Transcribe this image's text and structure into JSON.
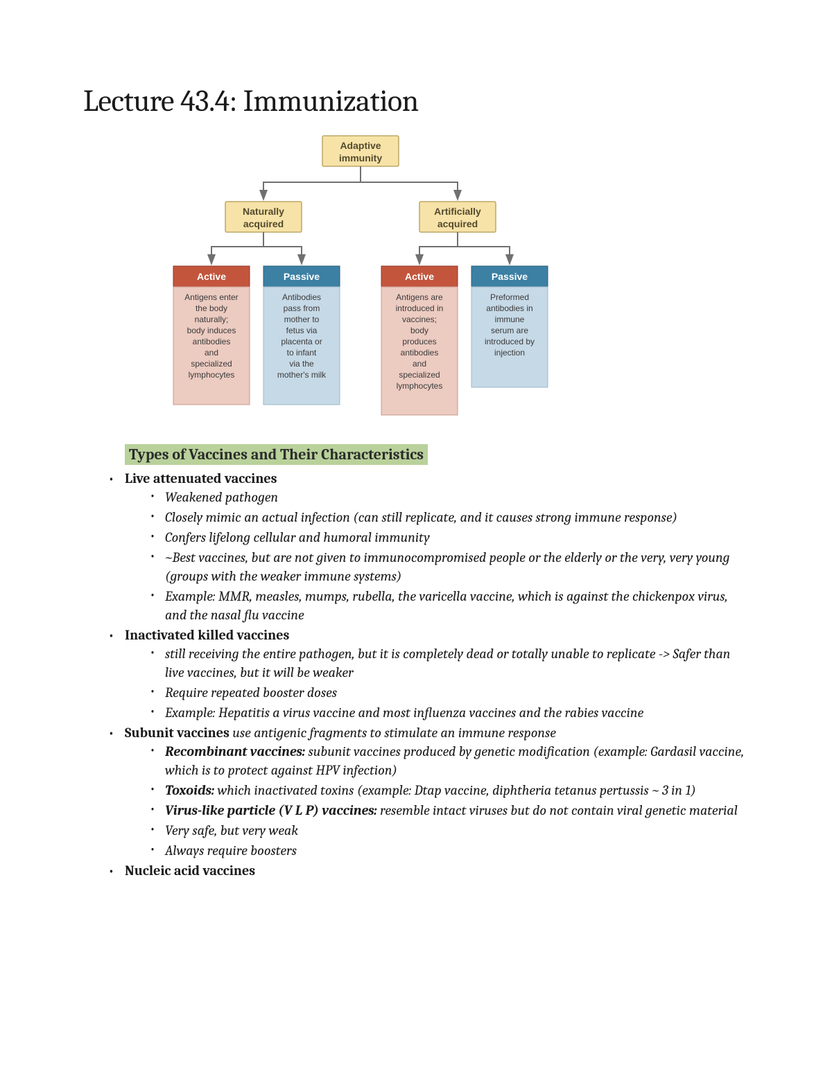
{
  "title": "Lecture 43.4: Immunization",
  "diagram": {
    "type": "tree",
    "colors": {
      "yellow_fill": "#f7e3a8",
      "yellow_stroke": "#bba766",
      "red_header_fill": "#c3553d",
      "blue_header_fill": "#3c80a4",
      "red_desc_fill": "#eccbc1",
      "blue_desc_fill": "#c6d9e6",
      "arrow": "#707070",
      "header_text": "#ffffff",
      "yellow_text": "#534a2e",
      "desc_text": "#3a3a3a",
      "background": "#ffffff"
    },
    "root": {
      "lines": [
        "Adaptive",
        "immunity"
      ]
    },
    "level2": [
      {
        "lines": [
          "Naturally",
          "acquired"
        ]
      },
      {
        "lines": [
          "Artificially",
          "acquired"
        ]
      }
    ],
    "leaves": [
      {
        "header": "Active",
        "type": "red",
        "desc": [
          "Antigens enter",
          "the body",
          "naturally;",
          "body induces",
          "antibodies",
          "and",
          "specialized",
          "lymphocytes"
        ]
      },
      {
        "header": "Passive",
        "type": "blue",
        "desc": [
          "Antibodies",
          "pass from",
          "mother to",
          "fetus via",
          "placenta or",
          "to infant",
          "via the",
          "mother's milk"
        ]
      },
      {
        "header": "Active",
        "type": "red",
        "desc": [
          "Antigens are",
          "introduced in",
          "vaccines;",
          "body",
          "produces",
          "antibodies",
          "and",
          "specialized",
          "lymphocytes"
        ]
      },
      {
        "header": "Passive",
        "type": "blue",
        "desc": [
          "Preformed",
          "antibodies in",
          "immune",
          "serum are",
          "introduced by",
          "injection"
        ]
      }
    ]
  },
  "section_heading": "Types of Vaccines and Their Characteristics",
  "content": {
    "items": [
      {
        "heading_bold": "Live attenuated vaccines",
        "heading_rest": "",
        "sub": [
          {
            "bold": "",
            "text": "Weakened pathogen"
          },
          {
            "bold": "",
            "text": "Closely mimic an actual infection (can still replicate, and it causes strong immune response)"
          },
          {
            "bold": "",
            "text": "Confers lifelong cellular and humoral immunity"
          },
          {
            "bold": "",
            "text": "~Best vaccines, but are not given to immunocompromised people or the elderly or the very, very young (groups with the weaker immune systems)"
          },
          {
            "bold": "",
            "text": "Example: MMR, measles, mumps, rubella, the varicella vaccine, which is against the chickenpox virus, and the nasal flu vaccine"
          }
        ]
      },
      {
        "heading_bold": "Inactivated killed vaccines",
        "heading_rest": "",
        "sub": [
          {
            "bold": "",
            "text": "still receiving the entire pathogen, but it is completely dead or totally unable to replicate -> Safer than live vaccines, but it will be weaker"
          },
          {
            "bold": "",
            "text": "Require repeated booster doses"
          },
          {
            "bold": "",
            "text": "Example: Hepatitis a virus vaccine and most influenza vaccines and the rabies vaccine"
          }
        ]
      },
      {
        "heading_bold": "Subunit vaccines",
        "heading_rest": " use antigenic fragments to stimulate an immune response",
        "sub": [
          {
            "bold": "Recombinant vaccines:",
            "text": " subunit vaccines produced by genetic modification (example: Gardasil vaccine, which is to protect against HPV infection)"
          },
          {
            "bold": "Toxoids:",
            "text": " which inactivated toxins (example: Dtap vaccine, diphtheria tetanus pertussis ~ 3 in 1)"
          },
          {
            "bold": "Virus-like particle (V L P) vaccines:",
            "text": " resemble intact viruses but do not contain viral genetic material"
          },
          {
            "bold": "",
            "text": "Very safe, but very weak"
          },
          {
            "bold": "",
            "text": "Always require boosters"
          }
        ]
      },
      {
        "heading_bold": "Nucleic acid vaccines",
        "heading_rest": "",
        "sub": []
      }
    ]
  }
}
